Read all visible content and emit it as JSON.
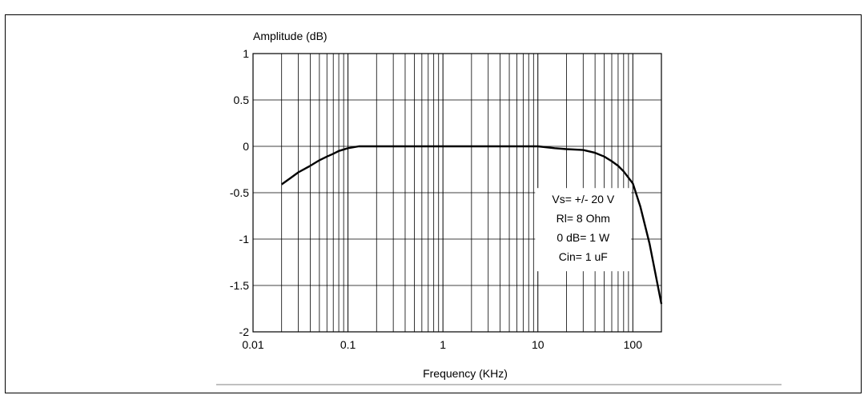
{
  "figure": {
    "title": ""
  },
  "chart_data": {
    "type": "line",
    "title": "",
    "xlabel": "Frequency (KHz)",
    "ylabel": "Amplitude (dB)",
    "xscale": "log",
    "xlim": [
      0.01,
      200
    ],
    "ylim": [
      -2,
      1
    ],
    "grid": true,
    "x_ticks": [
      {
        "value": 0.01,
        "label": "0.01"
      },
      {
        "value": 0.1,
        "label": "0.1"
      },
      {
        "value": 1,
        "label": "1"
      },
      {
        "value": 10,
        "label": "10"
      },
      {
        "value": 100,
        "label": "100"
      }
    ],
    "y_ticks": [
      {
        "value": 1,
        "label": "1"
      },
      {
        "value": 0.5,
        "label": "0.5"
      },
      {
        "value": 0,
        "label": "0"
      },
      {
        "value": -0.5,
        "label": "-0.5"
      },
      {
        "value": -1,
        "label": "-1"
      },
      {
        "value": -1.5,
        "label": "-1.5"
      },
      {
        "value": -2,
        "label": "-2"
      }
    ],
    "series": [
      {
        "name": "",
        "color": "#000000",
        "x": [
          0.02,
          0.025,
          0.03,
          0.04,
          0.05,
          0.06,
          0.07,
          0.08,
          0.1,
          0.13,
          0.2,
          0.5,
          1,
          2,
          5,
          10,
          15,
          20,
          30,
          40,
          50,
          60,
          70,
          80,
          100,
          120,
          150,
          200
        ],
        "y": [
          -0.41,
          -0.34,
          -0.28,
          -0.21,
          -0.15,
          -0.11,
          -0.08,
          -0.05,
          -0.02,
          0.0,
          0.0,
          0.0,
          0.0,
          0.0,
          0.0,
          0.0,
          -0.02,
          -0.03,
          -0.04,
          -0.07,
          -0.11,
          -0.16,
          -0.21,
          -0.27,
          -0.4,
          -0.65,
          -1.05,
          -1.7
        ]
      }
    ],
    "annotation": {
      "lines": [
        "Vs= +/- 20 V",
        "Rl= 8 Ohm",
        "0 dB= 1 W",
        "Cin= 1 uF"
      ],
      "x": 30,
      "y_top": -0.45
    }
  }
}
